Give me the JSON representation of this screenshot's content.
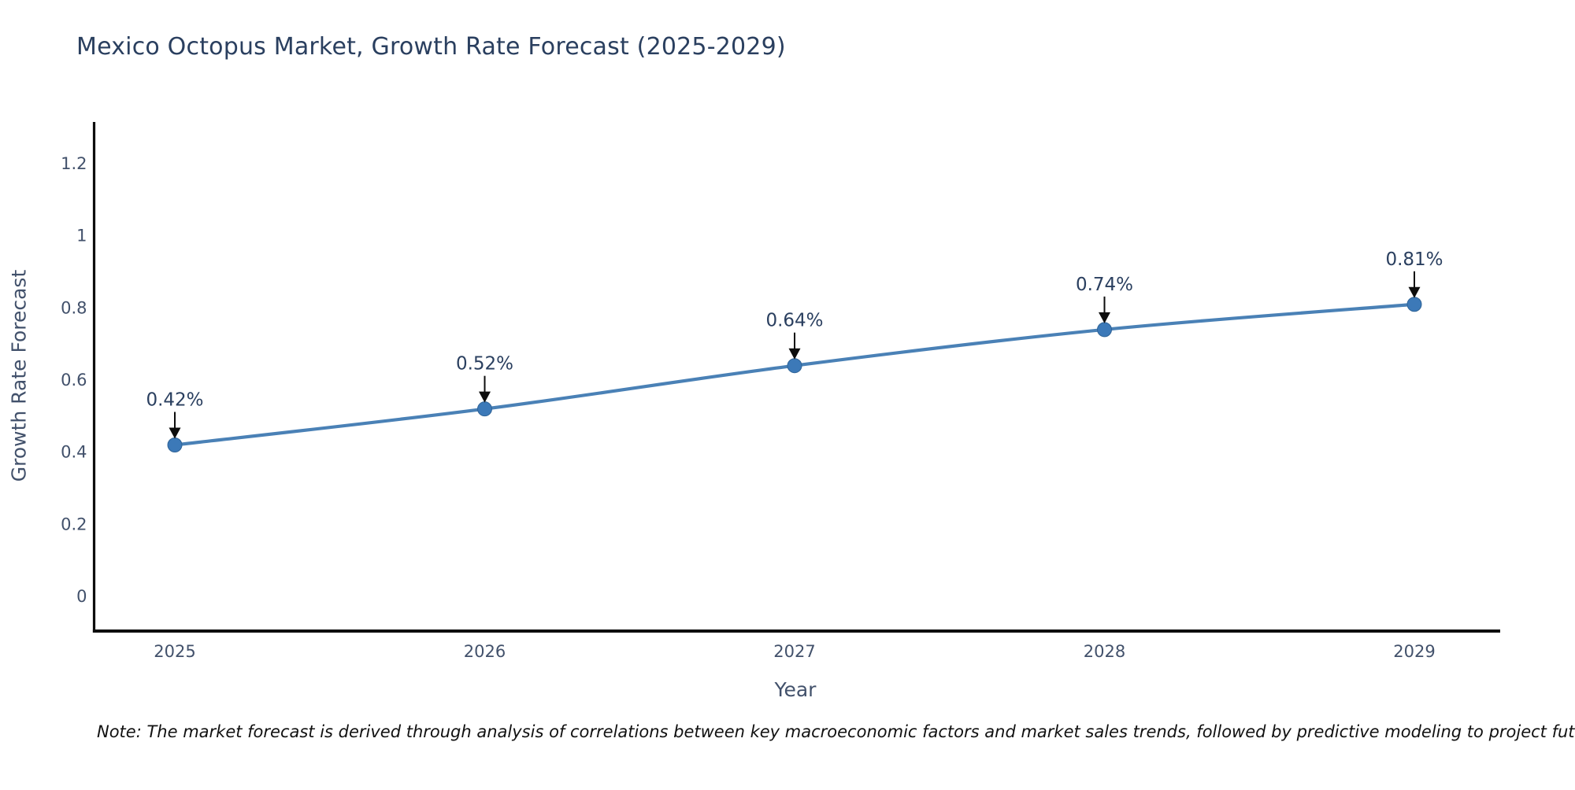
{
  "page": {
    "background": "#ffffff"
  },
  "chart_data": {
    "type": "line",
    "title": "Mexico Octopus Market, Growth Rate Forecast (2025-2029)",
    "xlabel": "Year",
    "ylabel": "Growth Rate Forecast",
    "x": [
      2025,
      2026,
      2027,
      2028,
      2029
    ],
    "series": [
      {
        "name": "Growth Rate Forecast",
        "values": [
          0.42,
          0.52,
          0.64,
          0.74,
          0.81
        ]
      }
    ],
    "annotations": [
      "0.42%",
      "0.52%",
      "0.64%",
      "0.74%",
      "0.81%"
    ],
    "yticks": [
      0,
      0.2,
      0.4,
      0.6,
      0.8,
      1,
      1.2
    ],
    "ytick_labels": [
      "0",
      "0.2",
      "0.4",
      "0.6",
      "0.8",
      "1",
      "1.2"
    ],
    "xtick_labels": [
      "2025",
      "2026",
      "2027",
      "2028",
      "2029"
    ],
    "ylim": [
      -0.1,
      1.32
    ],
    "grid": false,
    "legend_position": "none",
    "line_color": "#4a81b6",
    "marker_color": "#3c79b8",
    "marker_edge_color": "#2f6396",
    "axis_color": "#0d0d0d",
    "arrow_color": "#0d0d0d",
    "tick_label_color": "#42516b",
    "axis_title_color": "#42516b",
    "annotation_color": "#2a3f5f",
    "title_color": "#2a3f5f"
  },
  "note": {
    "text": "Note: The market forecast is derived through analysis of correlations between key macroeconomic factors and market sales trends, followed by predictive modeling to project future sales"
  }
}
